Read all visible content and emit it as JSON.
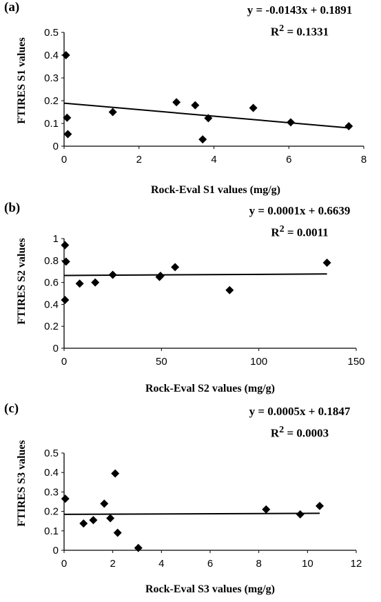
{
  "chart_data": [
    {
      "type": "scatter",
      "panel_label": "(a)",
      "title": "",
      "xlabel": "Rock-Eval S1 values (mg/g)",
      "ylabel": "FTIRES S1 values",
      "xlim": [
        0,
        8
      ],
      "ylim": [
        0,
        0.5
      ],
      "xticks": [
        0,
        2,
        4,
        6,
        8
      ],
      "yticks": [
        0,
        0.1,
        0.2,
        0.3,
        0.4,
        0.5
      ],
      "x": [
        0.05,
        0.08,
        0.1,
        1.3,
        3.0,
        3.5,
        3.7,
        3.85,
        5.05,
        6.05,
        7.6
      ],
      "y": [
        0.4,
        0.125,
        0.053,
        0.15,
        0.193,
        0.18,
        0.03,
        0.123,
        0.168,
        0.105,
        0.088
      ],
      "trendline": {
        "slope": -0.0143,
        "intercept": 0.1891,
        "x_range": [
          0,
          7.6
        ]
      },
      "equation": "y = -0.0143x + 0.1891",
      "r2_label": "R",
      "r2_value": " = 0.1331",
      "grid": false,
      "legend": "none"
    },
    {
      "type": "scatter",
      "panel_label": "(b)",
      "title": "",
      "xlabel": "Rock-Eval S2 values (mg/g)",
      "ylabel": "FTIRES S2 values",
      "xlim": [
        0,
        150
      ],
      "ylim": [
        0,
        1
      ],
      "xticks": [
        0,
        50,
        100,
        150
      ],
      "yticks": [
        0,
        0.2,
        0.4,
        0.6,
        0.8,
        1
      ],
      "x": [
        0.5,
        1.0,
        0.5,
        8,
        16,
        25,
        49,
        49.5,
        57,
        85,
        135
      ],
      "y": [
        0.94,
        0.79,
        0.44,
        0.59,
        0.6,
        0.67,
        0.65,
        0.66,
        0.74,
        0.53,
        0.78
      ],
      "trendline": {
        "slope": 0.0001,
        "intercept": 0.6639,
        "x_range": [
          0,
          135
        ]
      },
      "equation": "y = 0.0001x + 0.6639",
      "r2_label": "R",
      "r2_value": " = 0.0011",
      "grid": false,
      "legend": "none"
    },
    {
      "type": "scatter",
      "panel_label": "(c)",
      "title": "",
      "xlabel": "Rock-Eval S3 values (mg/g)",
      "ylabel": "FTIRES S3 values",
      "xlim": [
        0,
        12
      ],
      "ylim": [
        0,
        0.5
      ],
      "xticks": [
        0,
        2,
        4,
        6,
        8,
        10,
        12
      ],
      "yticks": [
        0,
        0.1,
        0.2,
        0.3,
        0.4,
        0.5
      ],
      "x": [
        0.05,
        0.8,
        1.2,
        1.65,
        1.9,
        2.1,
        2.2,
        3.05,
        8.3,
        9.7,
        10.5
      ],
      "y": [
        0.265,
        0.138,
        0.155,
        0.24,
        0.165,
        0.395,
        0.09,
        0.012,
        0.21,
        0.185,
        0.228
      ],
      "trendline": {
        "slope": 0.0005,
        "intercept": 0.1847,
        "x_range": [
          0,
          10.5
        ]
      },
      "equation": "y = 0.0005x + 0.1847",
      "r2_label": "R",
      "r2_value": " = 0.0003",
      "grid": false,
      "legend": "none"
    }
  ]
}
